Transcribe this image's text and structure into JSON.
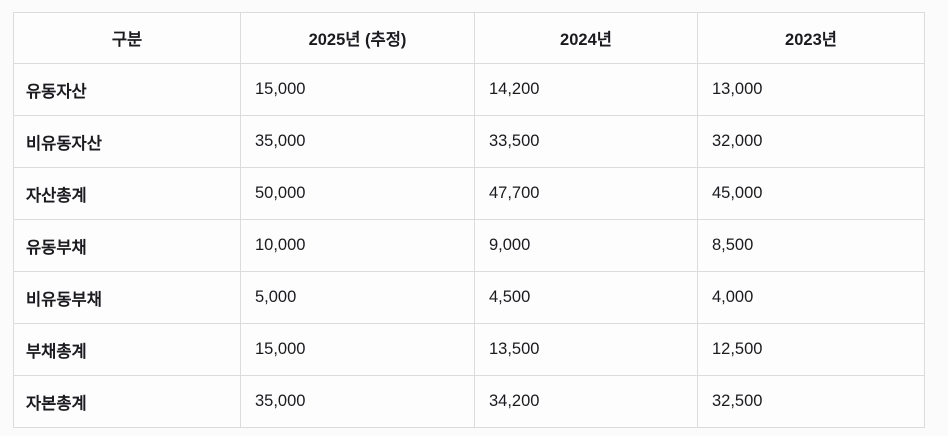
{
  "chart_data": {
    "type": "table",
    "columns": [
      "구분",
      "2025년 (추정)",
      "2024년",
      "2023년"
    ],
    "rows": [
      {
        "label": "유동자산",
        "values": [
          "15,000",
          "14,200",
          "13,000"
        ]
      },
      {
        "label": "비유동자산",
        "values": [
          "35,000",
          "33,500",
          "32,000"
        ]
      },
      {
        "label": "자산총계",
        "values": [
          "50,000",
          "47,700",
          "45,000"
        ]
      },
      {
        "label": "유동부채",
        "values": [
          "10,000",
          "9,000",
          "8,500"
        ]
      },
      {
        "label": "비유동부채",
        "values": [
          "5,000",
          "4,500",
          "4,000"
        ]
      },
      {
        "label": "부채총계",
        "values": [
          "15,000",
          "13,500",
          "12,500"
        ]
      },
      {
        "label": "자본총계",
        "values": [
          "35,000",
          "34,200",
          "32,500"
        ]
      }
    ]
  },
  "colors": {
    "border": "#dcdcdc",
    "text": "#1b1b1f",
    "page_background": "#fbfbfb",
    "cell_background": "#fdfdfd"
  }
}
